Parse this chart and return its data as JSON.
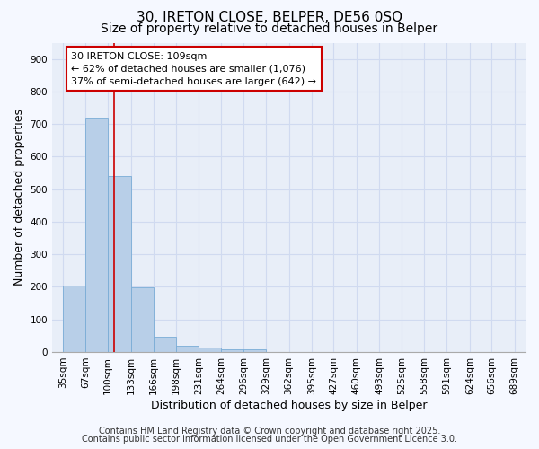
{
  "title_line1": "30, IRETON CLOSE, BELPER, DE56 0SQ",
  "title_line2": "Size of property relative to detached houses in Belper",
  "xlabel": "Distribution of detached houses by size in Belper",
  "ylabel": "Number of detached properties",
  "bin_edges": [
    35,
    67,
    100,
    133,
    166,
    198,
    231,
    264,
    296,
    329,
    362,
    395,
    427,
    460,
    493,
    525,
    558,
    591,
    624,
    656,
    689
  ],
  "bar_heights": [
    205,
    720,
    540,
    198,
    47,
    20,
    13,
    8,
    7,
    0,
    0,
    0,
    0,
    0,
    0,
    0,
    0,
    0,
    0,
    0
  ],
  "bar_color": "#b8cfe8",
  "bar_edge_color": "#7aacd6",
  "figure_background": "#f5f8ff",
  "axes_background": "#e8eef8",
  "grid_color": "#d0daf0",
  "vline_x": 109,
  "vline_color": "#cc0000",
  "ylim": [
    0,
    950
  ],
  "yticks": [
    0,
    100,
    200,
    300,
    400,
    500,
    600,
    700,
    800,
    900
  ],
  "annotation_text_line1": "30 IRETON CLOSE: 109sqm",
  "annotation_text_line2": "← 62% of detached houses are smaller (1,076)",
  "annotation_text_line3": "37% of semi-detached houses are larger (642) →",
  "annotation_box_color": "#ffffff",
  "annotation_edge_color": "#cc0000",
  "footnote1": "Contains HM Land Registry data © Crown copyright and database right 2025.",
  "footnote2": "Contains public sector information licensed under the Open Government Licence 3.0.",
  "title_fontsize": 11,
  "subtitle_fontsize": 10,
  "xlabel_fontsize": 9,
  "ylabel_fontsize": 9,
  "tick_fontsize": 7.5,
  "annotation_fontsize": 8,
  "footnote_fontsize": 7
}
